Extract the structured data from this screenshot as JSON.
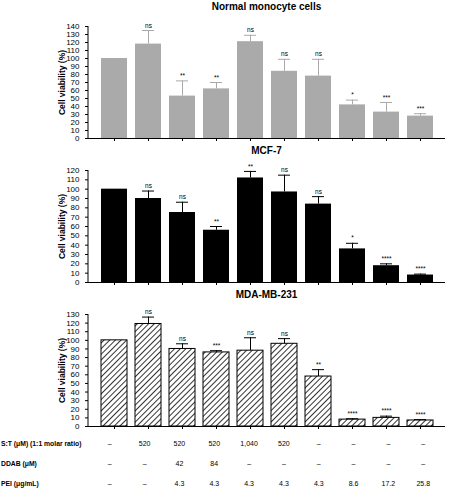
{
  "chart_data": [
    {
      "type": "bar",
      "title": "Normal monocyte cells",
      "y_label": "Cell viability (%)",
      "categories": [
        null,
        null,
        null,
        null,
        null,
        null,
        null,
        null,
        null,
        null
      ],
      "values": [
        100,
        118,
        53,
        62,
        121,
        84,
        78,
        42,
        33,
        28
      ],
      "errors": [
        null,
        17,
        19,
        8,
        8,
        15,
        21,
        6,
        12,
        3
      ],
      "significance": [
        null,
        "ns",
        "**",
        "**",
        "ns",
        "ns",
        "ns",
        "*",
        "***",
        "***"
      ],
      "color": "#aaaaaa",
      "ylim": [
        0,
        140
      ],
      "yticks": [
        0,
        10,
        20,
        30,
        40,
        50,
        60,
        70,
        80,
        90,
        100,
        110,
        120,
        130,
        140
      ],
      "grid": false,
      "tick_labels": "y"
    },
    {
      "type": "bar",
      "title": "MCF-7",
      "y_label": "Cell viability (%)",
      "categories": [
        null,
        null,
        null,
        null,
        null,
        null,
        null,
        null,
        null,
        null
      ],
      "values": [
        100,
        90,
        75,
        56,
        112,
        97,
        84,
        36,
        18,
        8
      ],
      "errors": [
        null,
        8,
        11,
        4,
        7,
        18,
        8,
        6,
        2,
        1
      ],
      "significance": [
        null,
        "ns",
        "ns",
        "**",
        "**",
        "ns",
        "ns",
        "*",
        "****",
        "****"
      ],
      "color": "#000000",
      "ylim": [
        0,
        120
      ],
      "yticks": [
        0,
        10,
        20,
        30,
        40,
        50,
        60,
        70,
        80,
        90,
        100,
        110,
        120
      ],
      "grid": false,
      "tick_labels": "y"
    },
    {
      "type": "bar",
      "title": "MDA-MB-231",
      "y_label": "Cell viability (%)",
      "categories": [
        null,
        null,
        null,
        null,
        null,
        null,
        null,
        null,
        null,
        null
      ],
      "values": [
        100,
        119,
        90,
        86,
        88,
        96,
        58,
        8,
        10,
        7
      ],
      "errors": [
        null,
        8,
        6,
        2,
        15,
        6,
        8,
        1,
        2,
        1
      ],
      "significance": [
        null,
        "ns",
        "ns",
        "***",
        "ns",
        "ns",
        "**",
        "****",
        "****",
        "****"
      ],
      "color": "#000000",
      "line_style": "hatched",
      "ylim": [
        0,
        130
      ],
      "yticks": [
        0,
        10,
        20,
        30,
        40,
        50,
        60,
        70,
        80,
        90,
        100,
        110,
        120,
        130
      ],
      "grid": false,
      "tick_labels": "y"
    }
  ],
  "treatment_table": {
    "rows": [
      {
        "label": "S:T (μM) (1:1 molar ratio)",
        "cells": [
          "–",
          "520",
          "520",
          "520",
          "1,040",
          "520",
          "–",
          "–",
          "–",
          "–"
        ]
      },
      {
        "label": "DDAB (μM)",
        "cells": [
          "–",
          "–",
          "42",
          "84",
          "–",
          "–",
          "–",
          "–",
          "–",
          "–"
        ]
      },
      {
        "label": "PEI (μg/mL)",
        "cells": [
          "–",
          "–",
          "4.3",
          "4.3",
          "4.3",
          "4.3",
          "4.3",
          "8.6",
          "17.2",
          "25.8"
        ]
      }
    ]
  }
}
